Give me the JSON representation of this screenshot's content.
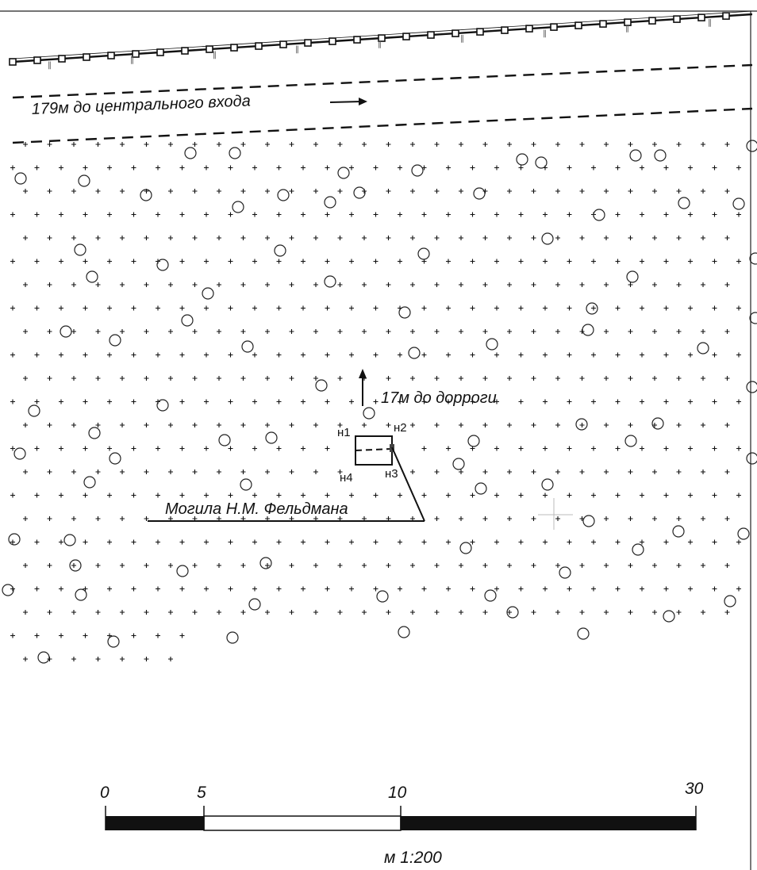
{
  "annotations": {
    "central_entrance": "179м до центрального входа",
    "road": "17м до дорроги",
    "grave": "Могила Н.М. Фельдмана"
  },
  "points": {
    "n1": "н1",
    "n2": "н2",
    "n3": "н3",
    "n4": "н4"
  },
  "scale": {
    "ticks": [
      "0",
      "5",
      "10",
      "30"
    ],
    "ratio": "м 1:200"
  },
  "colors": {
    "ink": "#111111",
    "background": "#ffffff"
  }
}
